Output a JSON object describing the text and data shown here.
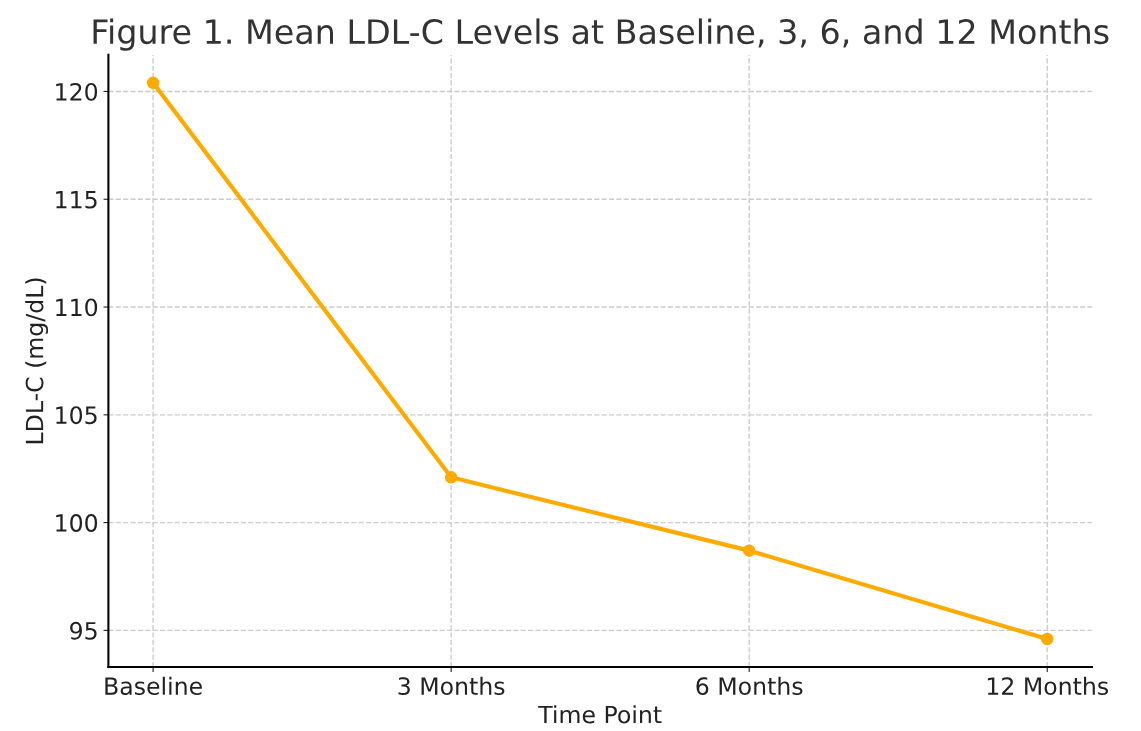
{
  "chart_data": {
    "type": "line",
    "title": "Figure 1. Mean LDL-C Levels at Baseline, 3, 6, and 12 Months",
    "xlabel": "Time Point",
    "ylabel": "LDL-C (mg/dL)",
    "categories": [
      "Baseline",
      "3 Months",
      "6 Months",
      "12 Months"
    ],
    "series": [
      {
        "color": "#ffaa00",
        "values": [
          120.4,
          102.1,
          98.7,
          94.6
        ]
      }
    ],
    "ylim": [
      93.3,
      121.7
    ],
    "yticks": [
      95,
      100,
      105,
      110,
      115,
      120
    ],
    "grid": true,
    "marker": "circle",
    "line_style": "solid"
  }
}
